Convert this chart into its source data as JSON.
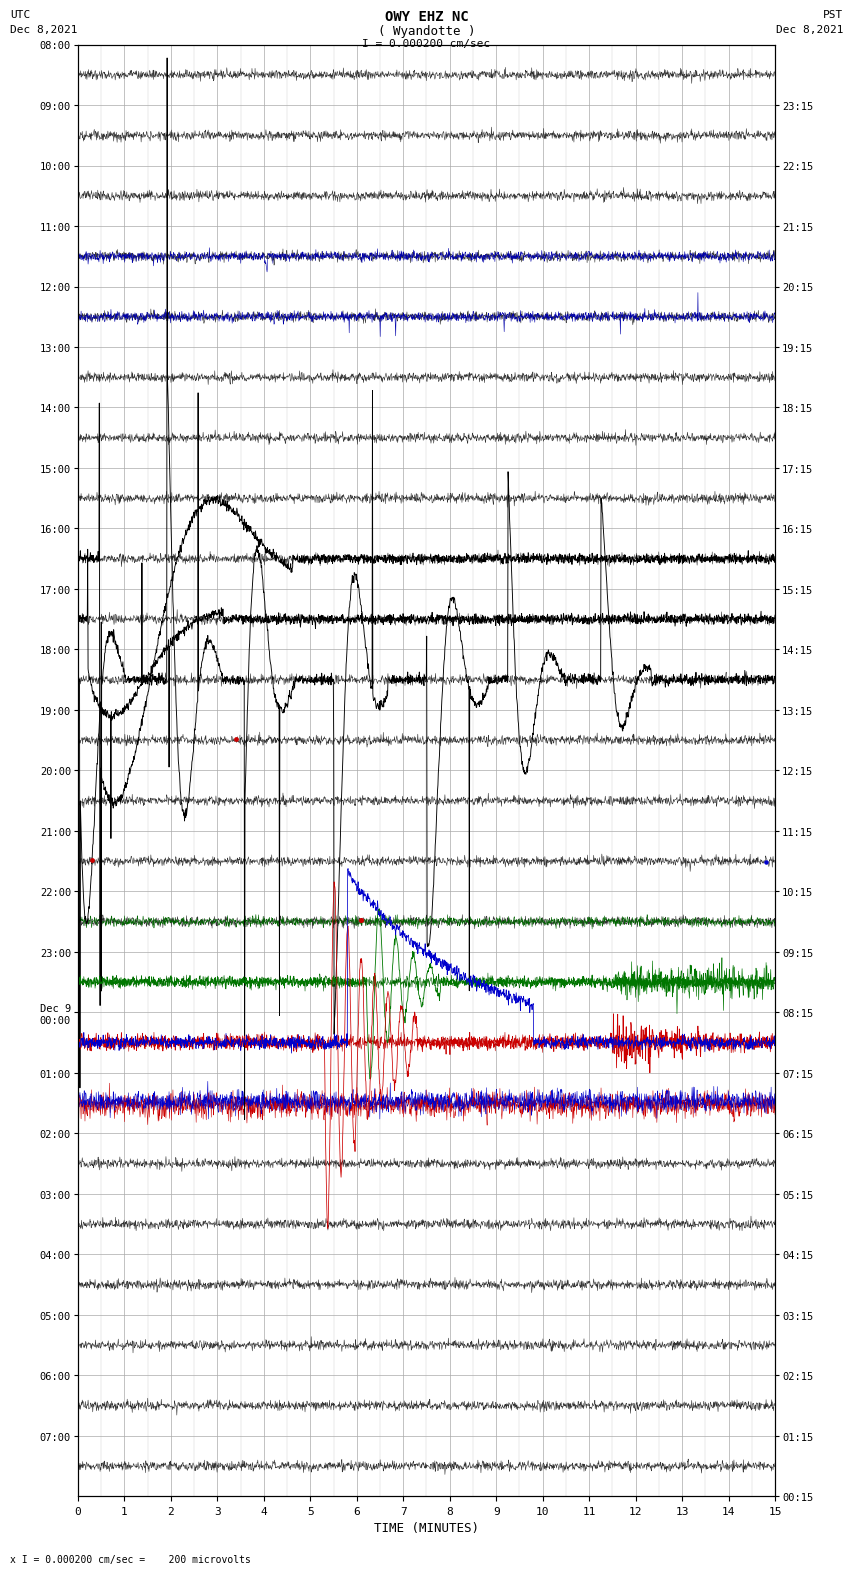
{
  "title_line1": "OWY EHZ NC",
  "title_line2": "( Wyandotte )",
  "title_line3": "I = 0.000200 cm/sec",
  "left_header_line1": "UTC",
  "left_header_line2": "Dec 8,2021",
  "right_header_line1": "PST",
  "right_header_line2": "Dec 8,2021",
  "xlabel": "TIME (MINUTES)",
  "footer": "x I = 0.000200 cm/sec =    200 microvolts",
  "left_times_utc": [
    "08:00",
    "09:00",
    "10:00",
    "11:00",
    "12:00",
    "13:00",
    "14:00",
    "15:00",
    "16:00",
    "17:00",
    "18:00",
    "19:00",
    "20:00",
    "21:00",
    "22:00",
    "23:00",
    "Dec 9\n00:00",
    "01:00",
    "02:00",
    "03:00",
    "04:00",
    "05:00",
    "06:00",
    "07:00"
  ],
  "right_times_pst": [
    "00:15",
    "01:15",
    "02:15",
    "03:15",
    "04:15",
    "05:15",
    "06:15",
    "07:15",
    "08:15",
    "09:15",
    "10:15",
    "11:15",
    "12:15",
    "13:15",
    "14:15",
    "15:15",
    "16:15",
    "17:15",
    "18:15",
    "19:15",
    "20:15",
    "21:15",
    "22:15",
    "23:15"
  ],
  "n_rows": 24,
  "n_minutes": 15,
  "background_color": "#ffffff",
  "grid_color": "#aaaaaa",
  "grid_color_minor": "#cccccc"
}
